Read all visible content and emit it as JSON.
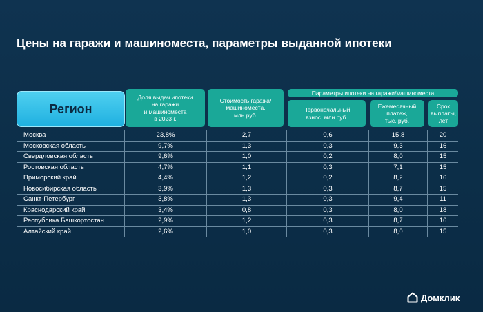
{
  "title": "Цены на гаражи и машиноместа, параметры выданной ипотеки",
  "headers": {
    "region": "Регион",
    "share": [
      "Доля выдач ипотеки",
      "на гаражи",
      "и машиноместа",
      "в 2023 г."
    ],
    "cost": [
      "Стоимость гаража/",
      "машиноместа,",
      "млн руб."
    ],
    "group": "Параметры ипотеки на гаражи/машиноместа",
    "down": [
      "Первоначальный",
      "взнос, млн руб."
    ],
    "pay": [
      "Ежемесячный",
      "платеж,",
      "тыс. руб."
    ],
    "term": [
      "Срок",
      "выплаты,",
      "лет"
    ]
  },
  "rows": [
    {
      "region": "Москва",
      "share": "23,8%",
      "cost": "2,7",
      "down": "0,6",
      "pay": "15,8",
      "term": "20"
    },
    {
      "region": "Московская область",
      "share": "9,7%",
      "cost": "1,3",
      "down": "0,3",
      "pay": "9,3",
      "term": "16"
    },
    {
      "region": "Свердловская область",
      "share": "9,6%",
      "cost": "1,0",
      "down": "0,2",
      "pay": "8,0",
      "term": "15"
    },
    {
      "region": "Ростовская область",
      "share": "4,7%",
      "cost": "1,1",
      "down": "0,3",
      "pay": "7,1",
      "term": "15"
    },
    {
      "region": "Приморский край",
      "share": "4,4%",
      "cost": "1,2",
      "down": "0,2",
      "pay": "8,2",
      "term": "16"
    },
    {
      "region": "Новосибирская область",
      "share": "3,9%",
      "cost": "1,3",
      "down": "0,3",
      "pay": "8,7",
      "term": "15"
    },
    {
      "region": "Санкт-Петербург",
      "share": "3,8%",
      "cost": "1,3",
      "down": "0,3",
      "pay": "9,4",
      "term": "11"
    },
    {
      "region": "Краснодарский край",
      "share": "3,4%",
      "cost": "0,8",
      "down": "0,3",
      "pay": "8,0",
      "term": "18"
    },
    {
      "region": "Республика Башкортостан",
      "share": "2,9%",
      "cost": "1,2",
      "down": "0,3",
      "pay": "8,7",
      "term": "16"
    },
    {
      "region": "Алтайский край",
      "share": "2,6%",
      "cost": "1,0",
      "down": "0,3",
      "pay": "8,0",
      "term": "15"
    }
  ],
  "logo": {
    "text": "Домклик",
    "icon": "house-icon"
  },
  "colors": {
    "background": "#0d2f48",
    "region_box": "#2ec0ea",
    "header_box": "#1aa898"
  }
}
